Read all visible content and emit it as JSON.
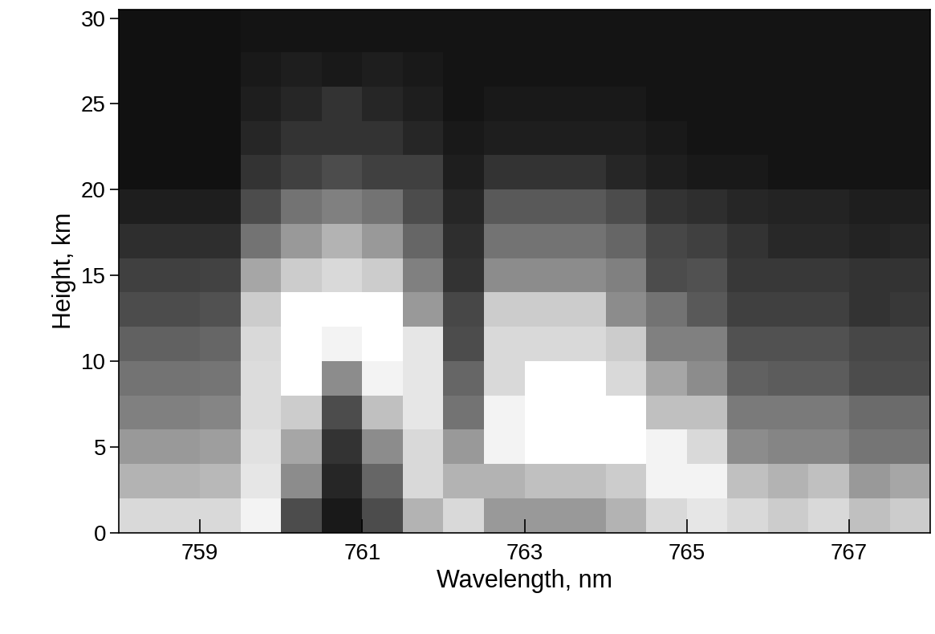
{
  "chart_data": {
    "type": "heatmap",
    "x_label": "Wavelength, nm",
    "y_label": "Height, km",
    "xlim": [
      758,
      768
    ],
    "ylim": [
      0,
      30.5
    ],
    "xticks": [
      759,
      761,
      763,
      765,
      767
    ],
    "yticks": [
      0,
      5,
      10,
      15,
      20,
      25,
      30
    ],
    "x_edges": [
      758,
      758.5,
      759,
      759.5,
      760,
      760.5,
      761,
      761.5,
      762,
      762.5,
      763,
      763.5,
      764,
      764.5,
      765,
      765.5,
      766,
      766.5,
      767,
      767.5,
      768
    ],
    "y_edges": [
      0,
      2,
      4,
      6,
      8,
      10,
      12,
      14,
      16,
      18,
      20,
      22,
      24,
      26,
      28,
      30.5
    ],
    "value_range": [
      0,
      1
    ],
    "cells": [
      [
        0.85,
        0.85,
        0.85,
        0.95,
        0.3,
        0.1,
        0.3,
        0.7,
        0.85,
        0.6,
        0.6,
        0.6,
        0.7,
        0.85,
        0.9,
        0.85,
        0.8,
        0.85,
        0.75,
        0.8
      ],
      [
        0.7,
        0.7,
        0.72,
        0.9,
        0.55,
        0.15,
        0.4,
        0.85,
        0.7,
        0.7,
        0.75,
        0.75,
        0.8,
        0.95,
        0.95,
        0.75,
        0.7,
        0.75,
        0.6,
        0.65
      ],
      [
        0.6,
        0.6,
        0.62,
        0.88,
        0.65,
        0.2,
        0.55,
        0.85,
        0.6,
        0.95,
        1,
        1,
        1,
        0.95,
        0.85,
        0.55,
        0.52,
        0.52,
        0.46,
        0.46
      ],
      [
        0.5,
        0.5,
        0.52,
        0.86,
        0.8,
        0.3,
        0.75,
        0.9,
        0.45,
        0.95,
        1,
        1,
        1,
        0.75,
        0.75,
        0.48,
        0.48,
        0.48,
        0.42,
        0.42
      ],
      [
        0.45,
        0.45,
        0.46,
        0.86,
        1,
        0.55,
        0.95,
        0.9,
        0.4,
        0.85,
        1,
        1,
        0.85,
        0.65,
        0.55,
        0.38,
        0.36,
        0.36,
        0.3,
        0.3
      ],
      [
        0.38,
        0.38,
        0.4,
        0.85,
        1,
        0.95,
        1,
        0.9,
        0.3,
        0.85,
        0.85,
        0.85,
        0.8,
        0.5,
        0.5,
        0.32,
        0.32,
        0.32,
        0.28,
        0.28
      ],
      [
        0.3,
        0.3,
        0.32,
        0.8,
        1,
        1,
        1,
        0.6,
        0.28,
        0.8,
        0.8,
        0.8,
        0.55,
        0.45,
        0.35,
        0.25,
        0.25,
        0.25,
        0.2,
        0.22
      ],
      [
        0.25,
        0.25,
        0.26,
        0.65,
        0.8,
        0.85,
        0.8,
        0.5,
        0.2,
        0.55,
        0.55,
        0.55,
        0.5,
        0.3,
        0.32,
        0.22,
        0.22,
        0.22,
        0.2,
        0.2
      ],
      [
        0.18,
        0.18,
        0.18,
        0.45,
        0.6,
        0.7,
        0.6,
        0.4,
        0.18,
        0.45,
        0.45,
        0.45,
        0.4,
        0.28,
        0.25,
        0.2,
        0.16,
        0.16,
        0.14,
        0.15
      ],
      [
        0.12,
        0.12,
        0.12,
        0.3,
        0.45,
        0.5,
        0.45,
        0.3,
        0.15,
        0.35,
        0.35,
        0.35,
        0.3,
        0.2,
        0.18,
        0.15,
        0.14,
        0.14,
        0.12,
        0.12
      ],
      [
        0.07,
        0.07,
        0.07,
        0.2,
        0.25,
        0.3,
        0.25,
        0.25,
        0.12,
        0.2,
        0.2,
        0.2,
        0.15,
        0.12,
        0.1,
        0.1,
        0.08,
        0.08,
        0.08,
        0.08
      ],
      [
        0.07,
        0.07,
        0.07,
        0.15,
        0.2,
        0.2,
        0.2,
        0.15,
        0.1,
        0.12,
        0.12,
        0.12,
        0.12,
        0.1,
        0.08,
        0.08,
        0.08,
        0.08,
        0.08,
        0.08
      ],
      [
        0.07,
        0.07,
        0.07,
        0.12,
        0.15,
        0.2,
        0.15,
        0.12,
        0.08,
        0.1,
        0.1,
        0.1,
        0.1,
        0.08,
        0.08,
        0.08,
        0.08,
        0.08,
        0.08,
        0.08
      ],
      [
        0.07,
        0.07,
        0.07,
        0.1,
        0.12,
        0.1,
        0.12,
        0.1,
        0.08,
        0.08,
        0.08,
        0.08,
        0.08,
        0.08,
        0.08,
        0.08,
        0.08,
        0.08,
        0.08,
        0.08
      ],
      [
        0.07,
        0.07,
        0.07,
        0.08,
        0.08,
        0.08,
        0.08,
        0.08,
        0.08,
        0.08,
        0.08,
        0.08,
        0.08,
        0.08,
        0.08,
        0.08,
        0.08,
        0.08,
        0.08,
        0.08
      ]
    ]
  }
}
